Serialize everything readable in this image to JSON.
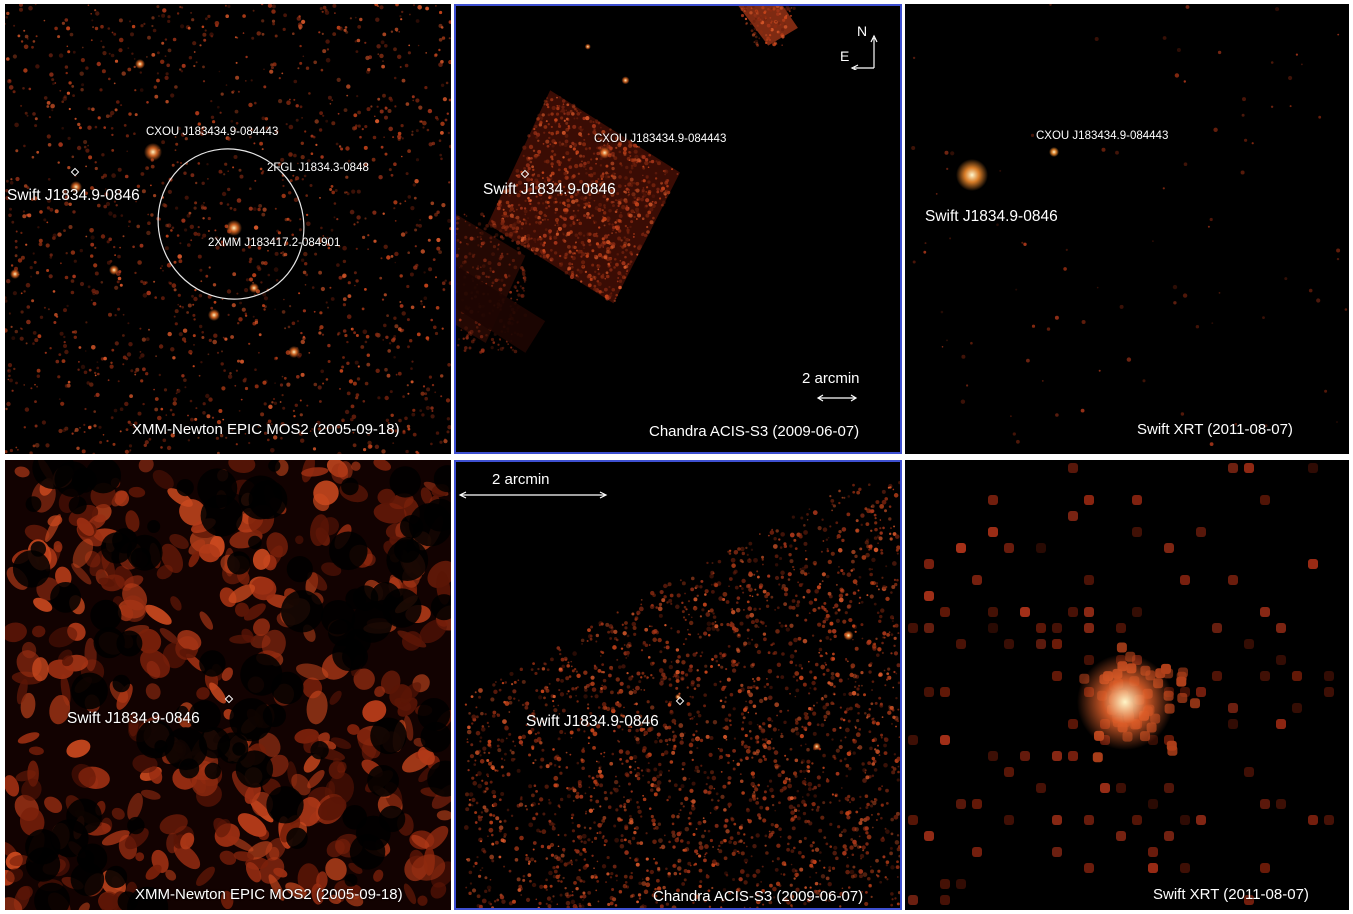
{
  "panels": {
    "top_left": {
      "caption": "XMM-Newton EPIC MOS2 (2005-09-18)",
      "labels": {
        "cxou": "CXOU J183434.9-084443",
        "fgl": "2FGL J1834.3-0848",
        "xmm": "2XMM J183417.2-084901",
        "swift": "Swift J1834.9-0846"
      }
    },
    "top_middle": {
      "caption": "Chandra ACIS-S3 (2009-06-07)",
      "labels": {
        "cxou": "CXOU J183434.9-084443",
        "swift": "Swift J1834.9-0846",
        "scale": "2 arcmin",
        "north": "N",
        "east": "E"
      }
    },
    "top_right": {
      "caption": "Swift  XRT (2011-08-07)",
      "labels": {
        "cxou": "CXOU J183434.9-084443",
        "swift": "Swift J1834.9-0846"
      }
    },
    "bottom_left": {
      "caption": "XMM-Newton EPIC MOS2 (2005-09-18)",
      "labels": {
        "swift": "Swift J1834.9-0846"
      }
    },
    "bottom_middle": {
      "caption": "Chandra ACIS-S3 (2009-06-07)",
      "labels": {
        "swift": "Swift J1834.9-0846",
        "scale": "2 arcmin"
      }
    },
    "bottom_right": {
      "caption": "Swift  XRT (2011-08-07)"
    }
  },
  "colors": {
    "panel_bg": "#000000",
    "emission": "#c8441a",
    "hot": "#ffd27a",
    "frame": "#3d4fd0"
  }
}
